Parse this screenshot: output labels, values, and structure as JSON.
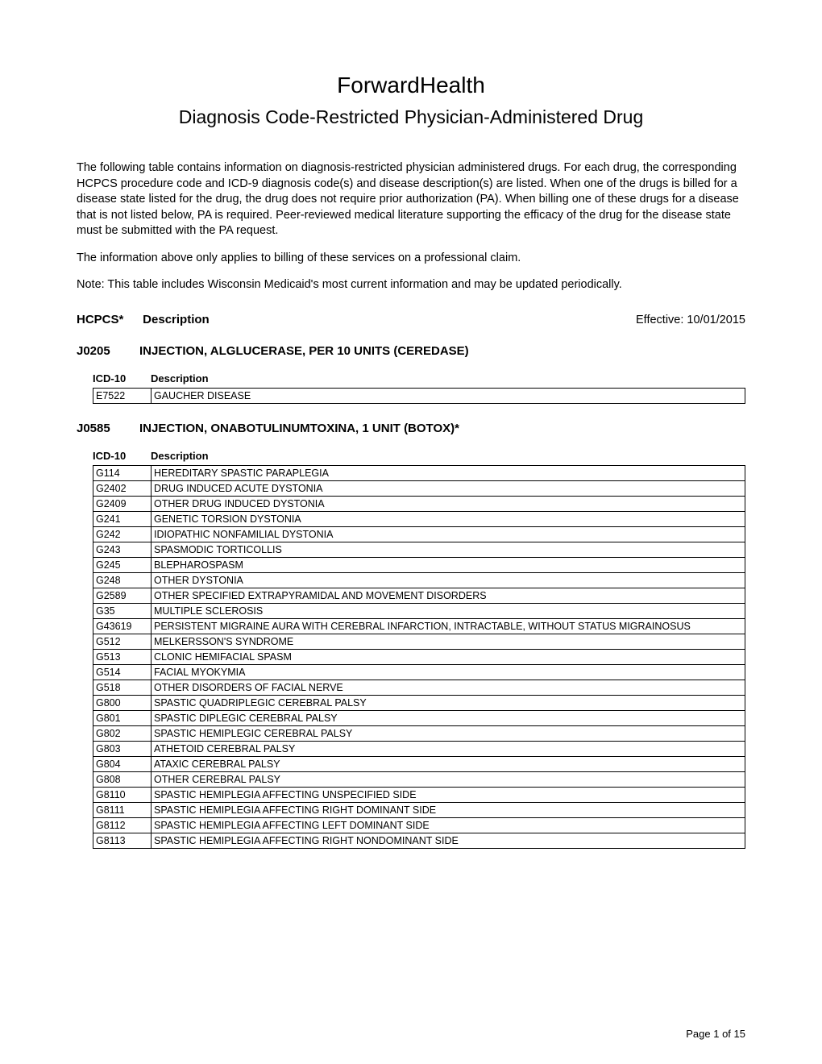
{
  "title": "ForwardHealth",
  "subtitle": "Diagnosis Code-Restricted Physician-Administered Drug",
  "intro_paragraphs": [
    "The following table contains information on diagnosis-restricted physician administered drugs. For each drug, the corresponding HCPCS procedure code and ICD-9 diagnosis code(s) and disease description(s) are listed. When one of the drugs is billed for a disease state listed for the drug, the drug does not require prior authorization (PA). When billing one of these drugs for a disease that is not listed below, PA is required. Peer-reviewed medical literature supporting the efficacy of the drug for the disease state must be submitted with the PA request.",
    "The information above only applies to billing of these services on a professional claim.",
    "Note: This table includes Wisconsin Medicaid's most current information and may be updated periodically."
  ],
  "header": {
    "hcpcs_label": "HCPCS*",
    "description_label": "Description",
    "effective_label": "Effective: 10/01/2015"
  },
  "icd_header": {
    "icd_label": "ICD-10",
    "desc_label": "Description"
  },
  "drugs": [
    {
      "code": "J0205",
      "name": "INJECTION, ALGLUCERASE, PER 10 UNITS (CEREDASE)",
      "rows": [
        {
          "code": "E7522",
          "desc": "GAUCHER DISEASE"
        }
      ]
    },
    {
      "code": "J0585",
      "name": "INJECTION, ONABOTULINUMTOXINA, 1 UNIT (BOTOX)*",
      "rows": [
        {
          "code": "G114",
          "desc": "HEREDITARY SPASTIC PARAPLEGIA"
        },
        {
          "code": "G2402",
          "desc": "DRUG INDUCED ACUTE DYSTONIA"
        },
        {
          "code": "G2409",
          "desc": "OTHER DRUG INDUCED DYSTONIA"
        },
        {
          "code": "G241",
          "desc": "GENETIC TORSION DYSTONIA"
        },
        {
          "code": "G242",
          "desc": "IDIOPATHIC NONFAMILIAL DYSTONIA"
        },
        {
          "code": "G243",
          "desc": "SPASMODIC TORTICOLLIS"
        },
        {
          "code": "G245",
          "desc": "BLEPHAROSPASM"
        },
        {
          "code": "G248",
          "desc": "OTHER DYSTONIA"
        },
        {
          "code": "G2589",
          "desc": "OTHER SPECIFIED EXTRAPYRAMIDAL AND MOVEMENT DISORDERS"
        },
        {
          "code": "G35",
          "desc": "MULTIPLE SCLEROSIS"
        },
        {
          "code": "G43619",
          "desc": "PERSISTENT MIGRAINE AURA WITH CEREBRAL INFARCTION, INTRACTABLE, WITHOUT STATUS MIGRAINOSUS"
        },
        {
          "code": "G512",
          "desc": "MELKERSSON'S SYNDROME"
        },
        {
          "code": "G513",
          "desc": "CLONIC HEMIFACIAL SPASM"
        },
        {
          "code": "G514",
          "desc": "FACIAL MYOKYMIA"
        },
        {
          "code": "G518",
          "desc": "OTHER DISORDERS OF FACIAL NERVE"
        },
        {
          "code": "G800",
          "desc": "SPASTIC QUADRIPLEGIC CEREBRAL PALSY"
        },
        {
          "code": "G801",
          "desc": "SPASTIC DIPLEGIC CEREBRAL PALSY"
        },
        {
          "code": "G802",
          "desc": "SPASTIC HEMIPLEGIC CEREBRAL PALSY"
        },
        {
          "code": "G803",
          "desc": "ATHETOID CEREBRAL PALSY"
        },
        {
          "code": "G804",
          "desc": "ATAXIC CEREBRAL PALSY"
        },
        {
          "code": "G808",
          "desc": "OTHER CEREBRAL PALSY"
        },
        {
          "code": "G8110",
          "desc": "SPASTIC HEMIPLEGIA AFFECTING UNSPECIFIED SIDE"
        },
        {
          "code": "G8111",
          "desc": "SPASTIC HEMIPLEGIA AFFECTING RIGHT DOMINANT SIDE"
        },
        {
          "code": "G8112",
          "desc": "SPASTIC HEMIPLEGIA AFFECTING LEFT DOMINANT SIDE"
        },
        {
          "code": "G8113",
          "desc": "SPASTIC HEMIPLEGIA AFFECTING RIGHT NONDOMINANT SIDE"
        }
      ]
    }
  ],
  "page_number": "Page 1 of 15"
}
